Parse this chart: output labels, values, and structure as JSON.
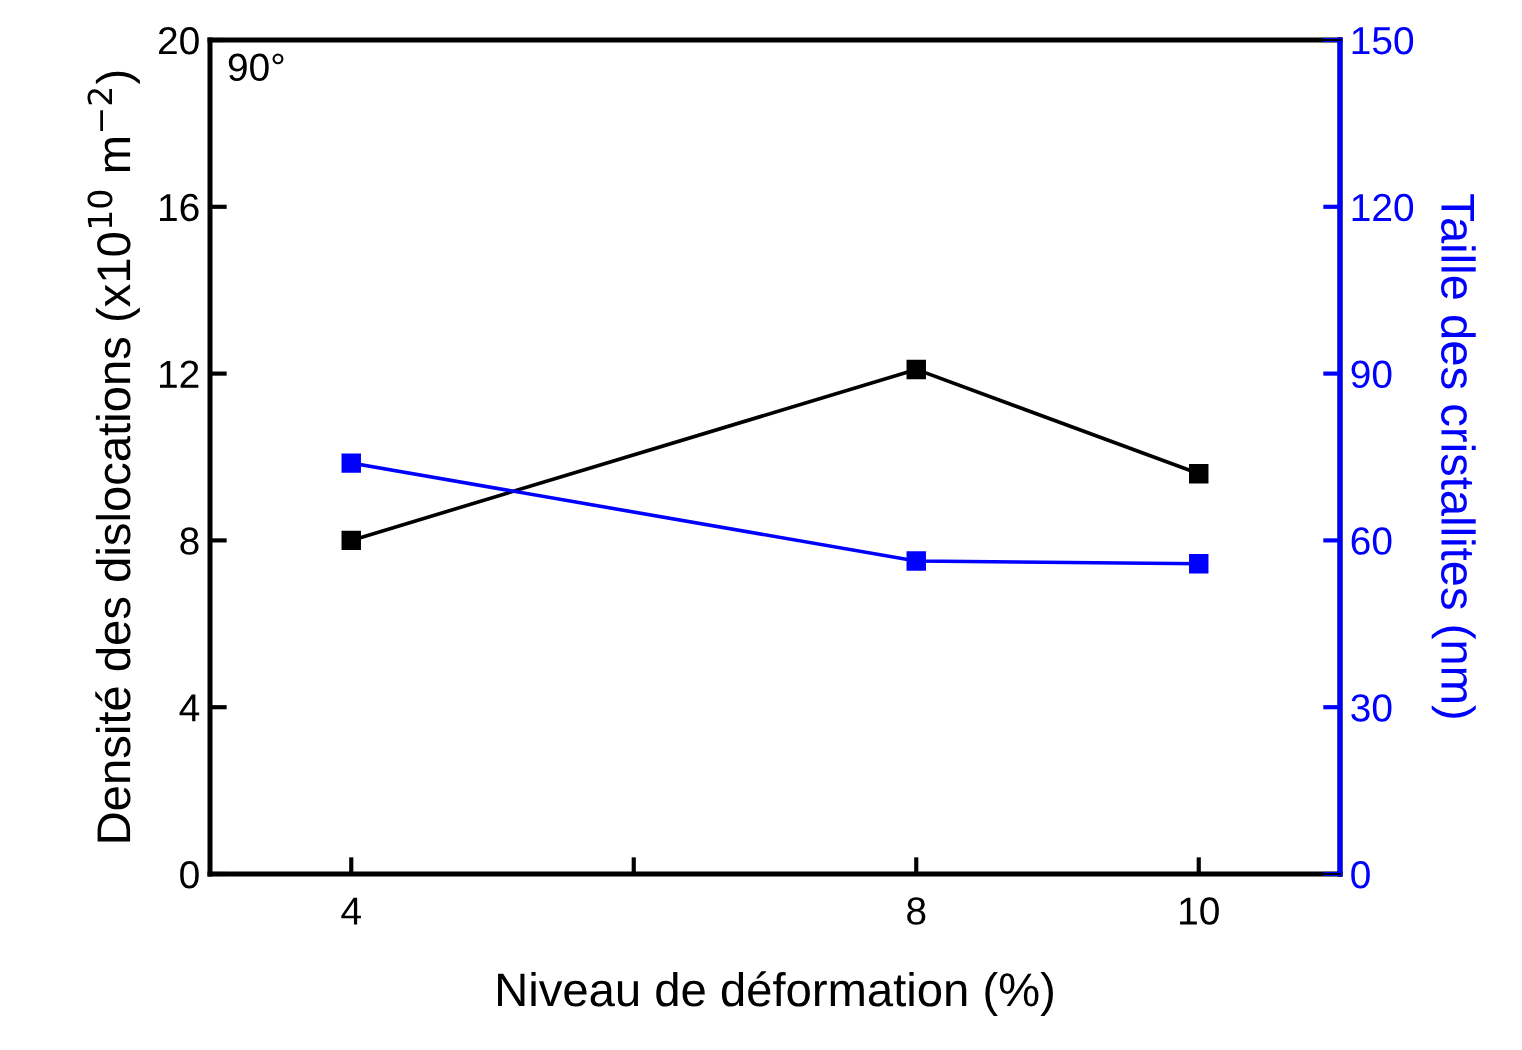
{
  "chart_data": {
    "type": "line",
    "xlabel": "Niveau de déformation (%)",
    "ylabel": "Densité des dislocations (x10$^{10}$ m$^{−2}$)",
    "y2label": "Taille des cristallites (nm)",
    "x": [
      4,
      8,
      10
    ],
    "series": [
      {
        "color": "#000000",
        "values": [
          8.0,
          12.1,
          9.6
        ]
      },
      {
        "color": "#0000ff",
        "values": [
          73.9,
          56.3,
          55.8
        ],
        "axis": "y2"
      }
    ],
    "xlim": [
      3,
      11
    ],
    "xticks": [
      4,
      {
        "value": 6,
        "label": null
      },
      8,
      10
    ],
    "ylim": [
      0,
      20
    ],
    "yticks": [
      0,
      4,
      8,
      12,
      16,
      20
    ],
    "y2lim": [
      0,
      150
    ],
    "y2ticks": [
      0,
      30,
      60,
      90,
      120,
      150
    ],
    "marker": "square",
    "line_style": "solid",
    "grid": false,
    "legend": false,
    "annotations": [
      "90°"
    ]
  }
}
